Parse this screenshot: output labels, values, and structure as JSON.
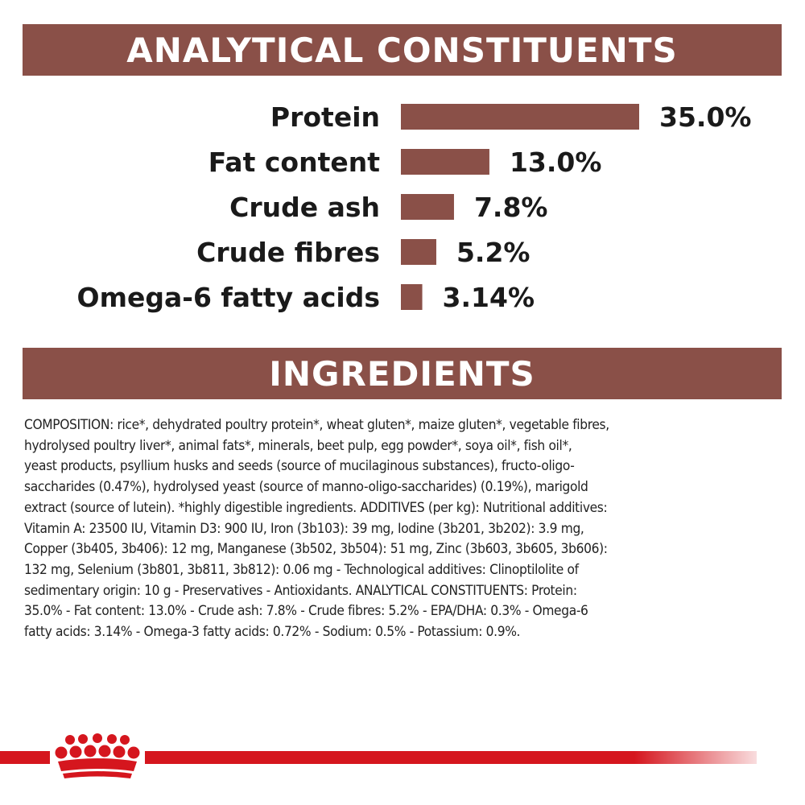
{
  "header": {
    "title": "ANALYTICAL CONSTITUENTS"
  },
  "chart_data": {
    "type": "bar",
    "orientation": "horizontal",
    "categories": [
      "Protein",
      "Fat content",
      "Crude ash",
      "Crude fibres",
      "Omega-6 fatty acids"
    ],
    "values": [
      35.0,
      13.0,
      7.8,
      5.2,
      3.14
    ],
    "value_labels": [
      "35.0%",
      "13.0%",
      "7.8%",
      "5.2%",
      "3.14%"
    ],
    "unit": "%",
    "bar_color": "#8a5048",
    "grid": false,
    "legend": "none"
  },
  "ingredients": {
    "title": "INGREDIENTS",
    "text": "COMPOSITION: rice*, dehydrated poultry protein*, wheat gluten*, maize gluten*, vegetable fibres,\nhydrolysed poultry liver*, animal fats*, minerals, beet pulp, egg powder*, soya oil*, fish oil*,\nyeast products, psyllium husks and seeds (source of mucilaginous substances), fructo-oligo-\nsaccharides (0.47%), hydrolysed yeast (source of manno-oligo-saccharides) (0.19%), marigold\nextract (source of lutein). *highly digestible ingredients. ADDITIVES (per kg): Nutritional additives:\nVitamin A: 23500 IU, Vitamin D3: 900 IU, Iron (3b103): 39 mg, Iodine (3b201, 3b202): 3.9 mg,\nCopper (3b405, 3b406): 12 mg, Manganese (3b502, 3b504): 51 mg, Zinc (3b603, 3b605, 3b606):\n132 mg, Selenium (3b801, 3b811, 3b812): 0.06 mg - Technological additives: Clinoptilolite of\nsedimentary origin: 10 g - Preservatives - Antioxidants. ANALYTICAL CONSTITUENTS: Protein:\n35.0% - Fat content: 13.0% - Crude ash: 7.8% - Crude fibres: 5.2% - EPA/DHA: 0.3% - Omega-6\nfatty acids: 3.14% - Omega-3 fatty acids: 0.72% - Sodium: 0.5% - Potassium: 0.9%."
  },
  "footer": {
    "line_color": "#d5161e",
    "logo_icon": "crown-icon"
  }
}
